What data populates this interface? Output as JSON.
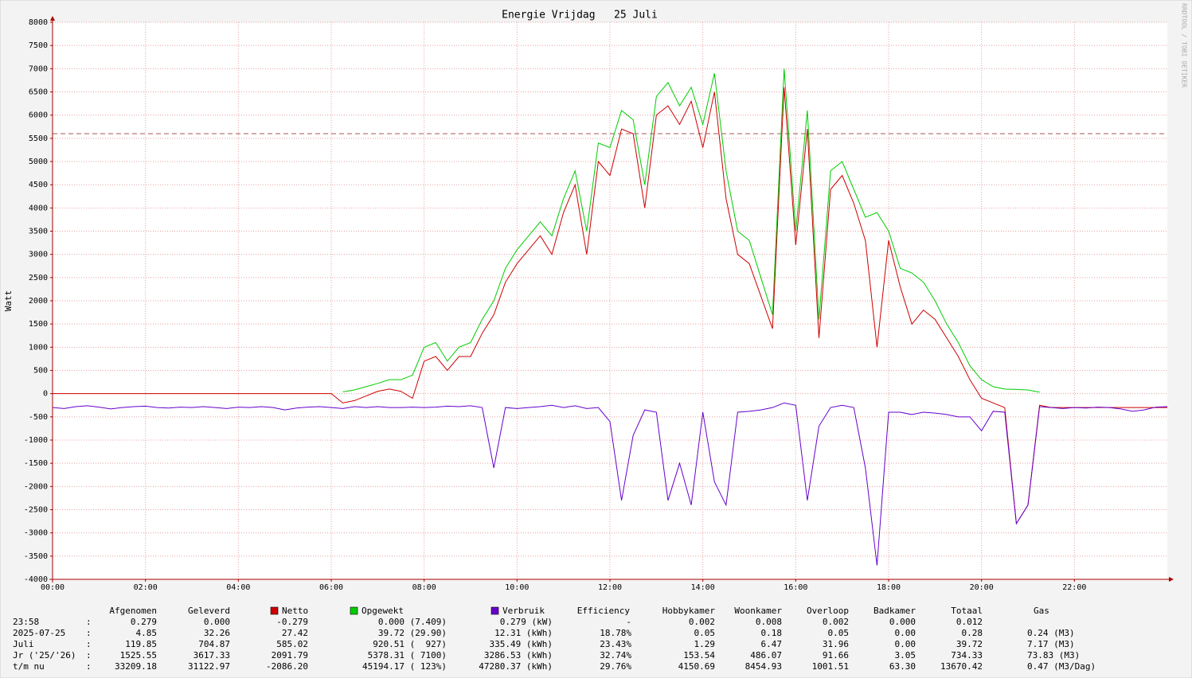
{
  "chart_data": {
    "type": "line",
    "title": "Energie Vrijdag   25 Juli",
    "y_label": "Watt",
    "watermark": "RRDTOOL / TOBI OETIKER",
    "grid": true,
    "xlim": [
      0,
      24
    ],
    "xticks": [
      {
        "value": 0,
        "label": "00:00"
      },
      {
        "value": 2,
        "label": "02:00"
      },
      {
        "value": 4,
        "label": "04:00"
      },
      {
        "value": 6,
        "label": "06:00"
      },
      {
        "value": 8,
        "label": "08:00"
      },
      {
        "value": 10,
        "label": "10:00"
      },
      {
        "value": 12,
        "label": "12:00"
      },
      {
        "value": 14,
        "label": "14:00"
      },
      {
        "value": 16,
        "label": "16:00"
      },
      {
        "value": 18,
        "label": "18:00"
      },
      {
        "value": 20,
        "label": "20:00"
      },
      {
        "value": 22,
        "label": "22:00"
      }
    ],
    "ylim": [
      -4000,
      8000
    ],
    "yticks": [
      -4000,
      -3500,
      -3000,
      -2500,
      -2000,
      -1500,
      -1000,
      -500,
      0,
      500,
      1000,
      1500,
      2000,
      2500,
      3000,
      3500,
      4000,
      4500,
      5000,
      5500,
      6000,
      6500,
      7000,
      7500,
      8000
    ],
    "hrule": 5600,
    "x": [
      0,
      0.25,
      0.5,
      0.75,
      1,
      1.25,
      1.5,
      1.75,
      2,
      2.25,
      2.5,
      2.75,
      3,
      3.25,
      3.5,
      3.75,
      4,
      4.25,
      4.5,
      4.75,
      5,
      5.25,
      5.5,
      5.75,
      6,
      6.25,
      6.5,
      6.75,
      7,
      7.25,
      7.5,
      7.75,
      8,
      8.25,
      8.5,
      8.75,
      9,
      9.25,
      9.5,
      9.75,
      10,
      10.25,
      10.5,
      10.75,
      11,
      11.25,
      11.5,
      11.75,
      12,
      12.25,
      12.5,
      12.75,
      13,
      13.25,
      13.5,
      13.75,
      14,
      14.25,
      14.5,
      14.75,
      15,
      15.25,
      15.5,
      15.75,
      16,
      16.25,
      16.5,
      16.75,
      17,
      17.25,
      17.5,
      17.75,
      18,
      18.25,
      18.5,
      18.75,
      19,
      19.25,
      19.5,
      19.75,
      20,
      20.25,
      20.5,
      20.75,
      21,
      21.25,
      21.5,
      21.75,
      22,
      22.25,
      22.5,
      22.75,
      23,
      23.25,
      23.5,
      23.75,
      24
    ],
    "series": [
      {
        "name": "Opgewekt",
        "color": "#00cc00",
        "values": [
          null,
          null,
          null,
          null,
          null,
          null,
          null,
          null,
          null,
          null,
          null,
          null,
          null,
          null,
          null,
          null,
          null,
          null,
          null,
          null,
          null,
          null,
          null,
          null,
          null,
          40,
          80,
          150,
          220,
          300,
          300,
          400,
          1000,
          1100,
          700,
          1000,
          1100,
          1600,
          2000,
          2700,
          3100,
          3400,
          3700,
          3400,
          4200,
          4800,
          3500,
          5400,
          5300,
          6100,
          5900,
          4500,
          6400,
          6700,
          6200,
          6600,
          5800,
          6900,
          4800,
          3500,
          3300,
          2500,
          1700,
          7000,
          3500,
          6100,
          1600,
          4800,
          5000,
          4400,
          3800,
          3900,
          3500,
          2700,
          2600,
          2400,
          2000,
          1500,
          1100,
          600,
          300,
          150,
          100,
          90,
          80,
          30,
          null,
          null,
          null,
          null,
          null,
          null,
          null,
          null,
          null,
          null,
          null
        ]
      },
      {
        "name": "Netto",
        "color": "#cc0000",
        "values": [
          0,
          0,
          0,
          0,
          0,
          0,
          0,
          0,
          0,
          0,
          0,
          0,
          0,
          0,
          0,
          0,
          0,
          0,
          0,
          0,
          0,
          0,
          0,
          0,
          0,
          -200,
          -150,
          -50,
          50,
          100,
          50,
          -100,
          700,
          800,
          500,
          800,
          800,
          1300,
          1700,
          2400,
          2800,
          3100,
          3400,
          3000,
          3900,
          4500,
          3000,
          5000,
          4700,
          5700,
          5600,
          4000,
          6000,
          6200,
          5800,
          6300,
          5300,
          6500,
          4200,
          3000,
          2800,
          2100,
          1400,
          6600,
          3200,
          5700,
          1200,
          4400,
          4700,
          4100,
          3300,
          1000,
          3300,
          2300,
          1500,
          1800,
          1600,
          1200,
          800,
          300,
          -100,
          -200,
          -300,
          -2800,
          -2400,
          -250,
          -300,
          -300,
          -300,
          -300,
          -300,
          -300,
          -300,
          -300,
          -300,
          -300,
          -300
        ]
      },
      {
        "name": "Verbruik",
        "color": "#6600cc",
        "values": [
          -300,
          -320,
          -280,
          -260,
          -290,
          -330,
          -300,
          -280,
          -270,
          -300,
          -310,
          -290,
          -300,
          -280,
          -300,
          -320,
          -290,
          -300,
          -280,
          -300,
          -350,
          -310,
          -290,
          -280,
          -300,
          -320,
          -280,
          -300,
          -280,
          -300,
          -300,
          -290,
          -300,
          -290,
          -270,
          -280,
          -260,
          -300,
          -1600,
          -300,
          -320,
          -300,
          -280,
          -250,
          -300,
          -260,
          -320,
          -300,
          -600,
          -2300,
          -900,
          -350,
          -400,
          -2300,
          -1500,
          -2400,
          -400,
          -1900,
          -2400,
          -400,
          -380,
          -350,
          -300,
          -200,
          -250,
          -2300,
          -700,
          -300,
          -250,
          -300,
          -1600,
          -3700,
          -400,
          -400,
          -450,
          -400,
          -420,
          -450,
          -500,
          -500,
          -800,
          -380,
          -400,
          -2800,
          -2400,
          -280,
          -300,
          -320,
          -300,
          -310,
          -290,
          -300,
          -330,
          -380,
          -350,
          -290,
          -280
        ]
      }
    ]
  },
  "table": {
    "separator": ":",
    "headers": [
      "Afgenomen",
      "Geleverd",
      "Netto",
      "Opgewekt",
      "Verbruik",
      "Efficiency",
      "Hobbykamer",
      "Woonkamer",
      "Overloop",
      "Badkamer",
      "Totaal",
      "Gas"
    ],
    "rows": [
      {
        "label": "23:58",
        "cells": [
          "0.279",
          "0.000",
          "-0.279",
          "0.000 (7.409)",
          "0.279 (kW)",
          "-",
          "0.002",
          "0.008",
          "0.002",
          "0.000",
          "0.012"
        ]
      },
      {
        "label": "2025-07-25",
        "cells": [
          "4.85",
          "32.26",
          "27.42",
          "39.72 (29.90)",
          "12.31 (kWh)",
          "18.78%",
          "0.05",
          "0.18",
          "0.05",
          "0.00",
          "0.28",
          "0.24 (M3)"
        ]
      },
      {
        "label": "Juli",
        "cells": [
          "119.85",
          "704.87",
          "585.02",
          "920.51 (  927)",
          "335.49 (kWh)",
          "23.43%",
          "1.29",
          "6.47",
          "31.96",
          "0.00",
          "39.72",
          "7.17 (M3)"
        ]
      },
      {
        "label": "Jr ('25/'26)",
        "cells": [
          "1525.55",
          "3617.33",
          "2091.79",
          "5378.31 ( 7100)",
          "3286.53 (kWh)",
          "32.74%",
          "153.54",
          "486.07",
          "91.66",
          "3.05",
          "734.33",
          "73.83 (M3)"
        ]
      },
      {
        "label": "t/m nu",
        "cells": [
          "33209.18",
          "31122.97",
          "-2086.20",
          "45194.17 ( 123%)",
          "47280.37 (kWh)",
          "29.76%",
          "4150.69",
          "8454.93",
          "1001.51",
          "63.30",
          "13670.42",
          "0.47 (M3/Dag)"
        ]
      }
    ]
  }
}
